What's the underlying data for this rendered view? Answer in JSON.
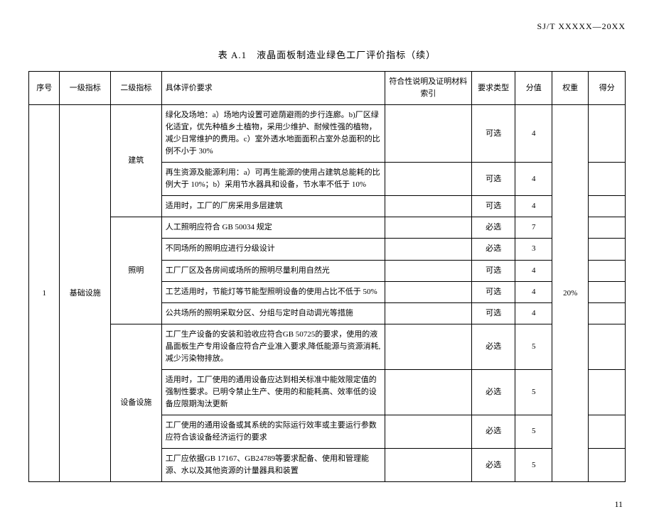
{
  "doc": {
    "standard_code": "SJ/T XXXXX—20XX",
    "caption": "表 A.1　液晶面板制造业绿色工厂评价指标（续）",
    "page_number": "11"
  },
  "headers": {
    "seq": "序号",
    "l1": "一级指标",
    "l2": "二级指标",
    "req": "具体评价要求",
    "ref": "符合性说明及证明材料索引",
    "type": "要求类型",
    "score": "分值",
    "weight": "权重",
    "get": "得分"
  },
  "seq_value": "1",
  "l1_value": "基础设施",
  "weight_value": "20%",
  "groups": [
    {
      "l2": "建筑",
      "rows": [
        {
          "req": "绿化及场地：a）场地内设置可遮荫避雨的步行连廊。b)厂区绿化适宜，优先种植乡土植物，采用少维护、耐候性强的植物，减少日常维护的费用。c）室外透水地面面积占室外总面积的比例不小于 30%",
          "type": "可选",
          "score": "4"
        },
        {
          "req": "再生资源及能源利用：a）可再生能源的使用占建筑总能耗的比例大于 10%；b）采用节水器具和设备，节水率不低于 10%",
          "type": "可选",
          "score": "4"
        },
        {
          "req": "适用时，工厂的厂房采用多层建筑",
          "type": "可选",
          "score": "4"
        }
      ]
    },
    {
      "l2": "照明",
      "rows": [
        {
          "req": "人工照明应符合 GB 50034 规定",
          "type": "必选",
          "score": "7"
        },
        {
          "req": "不同场所的照明应进行分级设计",
          "type": "必选",
          "score": "3"
        },
        {
          "req": "工厂厂区及各房间或场所的照明尽量利用自然光",
          "type": "可选",
          "score": "4"
        },
        {
          "req": "工艺适用时，节能灯等节能型照明设备的使用占比不低于 50%",
          "type": "可选",
          "score": "4"
        },
        {
          "req": "公共场所的照明采取分区、分组与定时自动调光等措施",
          "type": "可选",
          "score": "4"
        }
      ]
    },
    {
      "l2": "设备设施",
      "rows": [
        {
          "req": "工厂生产设备的安装和验收应符合GB 50725的要求，使用的液晶面板生产专用设备应符合产业准入要求,降低能源与资源消耗,减少污染物排放。",
          "type": "必选",
          "score": "5"
        },
        {
          "req": "适用时，工厂使用的通用设备应达到相关标准中能效限定值的强制性要求。已明令禁止生产、使用的和能耗高、效率低的设备应限期淘汰更新",
          "type": "必选",
          "score": "5"
        },
        {
          "req": "工厂使用的通用设备或其系统的实际运行效率或主要运行参数应符合该设备经济运行的要求",
          "type": "必选",
          "score": "5"
        },
        {
          "req": "工厂应依据GB 17167、GB24789等要求配备、使用和管理能源、水以及其他资源的计量器具和装置",
          "type": "必选",
          "score": "5"
        }
      ]
    }
  ]
}
